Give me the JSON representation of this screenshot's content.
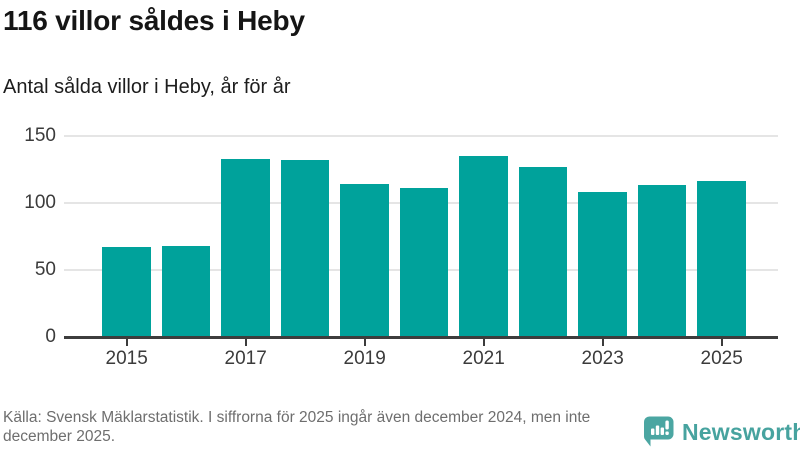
{
  "header": {
    "title": "116 villor såldes i Heby",
    "subtitle": "Antal sålda villor i Heby, år för år"
  },
  "chart_data": {
    "type": "bar",
    "title": "Antal sålda villor i Heby, år för år",
    "categories": [
      "2015",
      "2016",
      "2017",
      "2018",
      "2019",
      "2020",
      "2021",
      "2022",
      "2023",
      "2024",
      "2025"
    ],
    "values": [
      67,
      68,
      133,
      132,
      114,
      111,
      135,
      127,
      108,
      113,
      116
    ],
    "x_tick_labels": [
      "2015",
      "2017",
      "2019",
      "2021",
      "2023",
      "2025"
    ],
    "y_ticks": [
      0,
      50,
      100,
      150
    ],
    "ylim": [
      0,
      150
    ],
    "xlabel": "",
    "ylabel": "",
    "grid": true,
    "legend_position": "none",
    "bar_color": "#00a29b"
  },
  "footer": {
    "source_text": "Källa: Svensk Mäklarstatistik. I siffrorna för 2025 ingår även december 2024, men inte december 2025.",
    "brand": {
      "name": "Newsworthy",
      "color": "#47a39f",
      "icon": "newsworthy-speech-bubble-chart-icon"
    }
  },
  "colors": {
    "bar": "#00a29b",
    "title_text": "#151515",
    "axis_text": "#3b3b3b",
    "gridline": "#e5e5e5",
    "axis_line": "#3d3d3d",
    "footer_text": "#6e6e6e",
    "brand": "#47a39f"
  }
}
